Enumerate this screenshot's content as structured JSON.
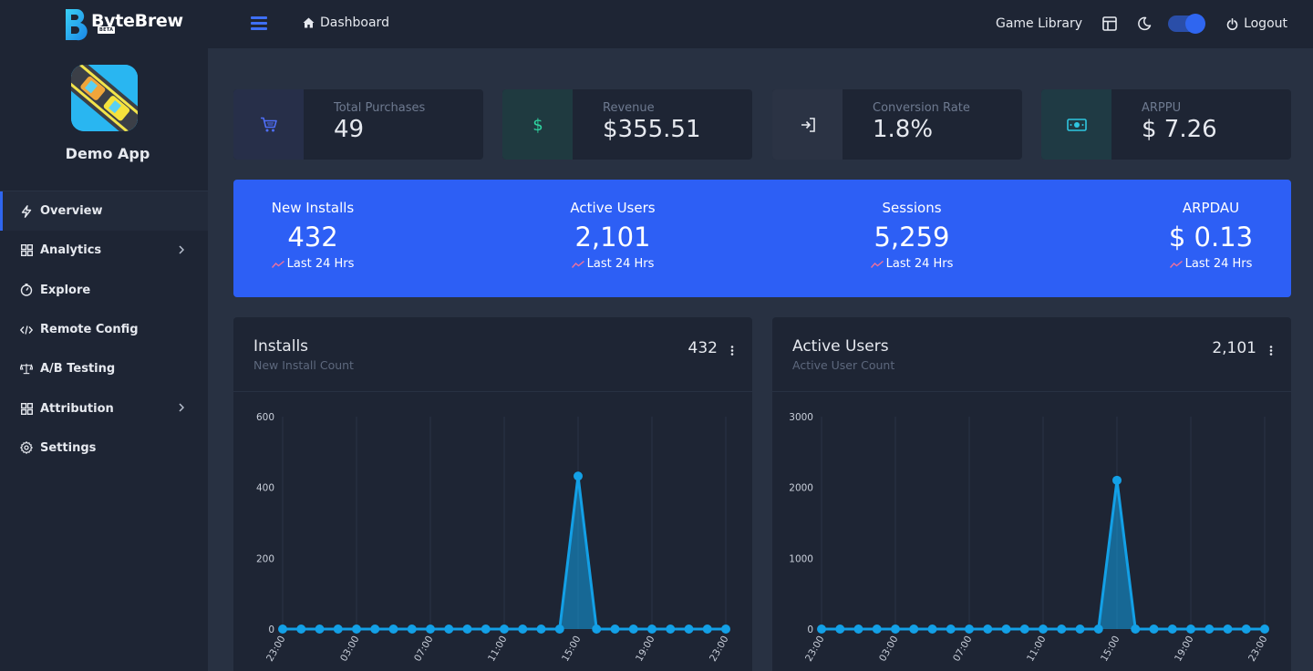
{
  "brand": {
    "name": "ByteBrew",
    "badge": "BETA"
  },
  "header": {
    "breadcrumb": "Dashboard",
    "game_library": "Game Library",
    "logout": "Logout",
    "dark_mode_on": true
  },
  "sidebar": {
    "app_name": "Demo App",
    "items": [
      {
        "label": "Overview",
        "icon": "bolt-icon",
        "active": true
      },
      {
        "label": "Analytics",
        "icon": "grid-icon",
        "has_submenu": true
      },
      {
        "label": "Explore",
        "icon": "compass-icon"
      },
      {
        "label": "Remote Config",
        "icon": "code-icon"
      },
      {
        "label": "A/B Testing",
        "icon": "scale-icon"
      },
      {
        "label": "Attribution",
        "icon": "grid-icon",
        "has_submenu": true
      },
      {
        "label": "Settings",
        "icon": "gear-icon"
      }
    ]
  },
  "stats": [
    {
      "label": "Total Purchases",
      "value": "49",
      "icon": "cart-icon",
      "color": "#4f6ef7"
    },
    {
      "label": "Revenue",
      "value": "$355.51",
      "icon": "dollar-icon",
      "color": "#2fd4a0"
    },
    {
      "label": "Conversion Rate",
      "value": "1.8%",
      "icon": "sign-in-icon",
      "color": "#e6e9ef"
    },
    {
      "label": "ARPPU",
      "value": "$ 7.26",
      "icon": "money-bill-icon",
      "color": "#2fc6e0"
    }
  ],
  "kpis": [
    {
      "label": "New Installs",
      "value": "432",
      "sub": "Last 24 Hrs"
    },
    {
      "label": "Active Users",
      "value": "2,101",
      "sub": "Last 24 Hrs"
    },
    {
      "label": "Sessions",
      "value": "5,259",
      "sub": "Last 24 Hrs"
    },
    {
      "label": "ARPDAU",
      "value": "$ 0.13",
      "sub": "Last 24 Hrs"
    }
  ],
  "chart_data": [
    {
      "type": "area",
      "title": "Installs",
      "subtitle": "New Install Count",
      "total": "432",
      "ylim": [
        0,
        600
      ],
      "yticks": [
        0,
        200,
        400,
        600
      ],
      "x_tick_labels": [
        "23:00",
        "03:00",
        "07:00",
        "11:00",
        "15:00",
        "19:00",
        "23:00"
      ],
      "series": [
        {
          "values": [
            0,
            0,
            0,
            0,
            0,
            0,
            0,
            0,
            0,
            0,
            0,
            0,
            0,
            0,
            0,
            0,
            432,
            0,
            0,
            0,
            0,
            0,
            0,
            0,
            0
          ]
        }
      ],
      "color": "#13a0e6",
      "grid": true
    },
    {
      "type": "area",
      "title": "Active Users",
      "subtitle": "Active User Count",
      "total": "2,101",
      "ylim": [
        0,
        3000
      ],
      "yticks": [
        0,
        1000,
        2000,
        3000
      ],
      "x_tick_labels": [
        "23:00",
        "03:00",
        "07:00",
        "11:00",
        "15:00",
        "19:00",
        "23:00"
      ],
      "series": [
        {
          "values": [
            0,
            0,
            0,
            0,
            0,
            0,
            0,
            0,
            0,
            0,
            0,
            0,
            0,
            0,
            0,
            0,
            2101,
            0,
            0,
            0,
            0,
            0,
            0,
            0,
            0
          ]
        }
      ],
      "color": "#13a0e6",
      "grid": true
    }
  ]
}
